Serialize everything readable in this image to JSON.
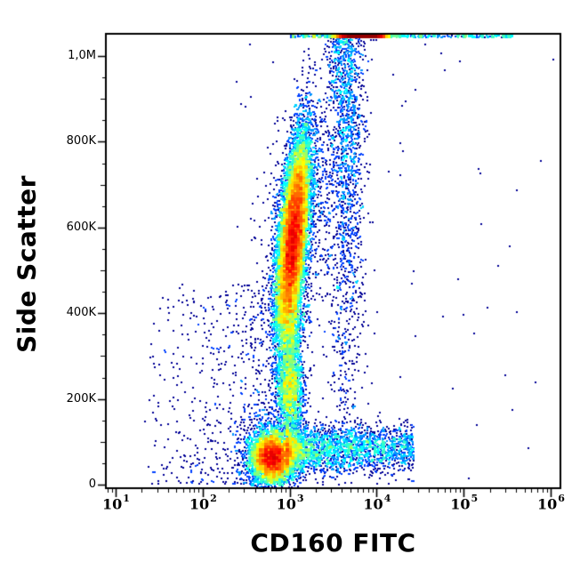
{
  "figure": {
    "background_color": "#ffffff",
    "border_color": "#000000"
  },
  "chart_data": {
    "type": "scatter",
    "subtype": "flow-cytometry-pseudocolor-density",
    "title": "",
    "xlabel": "CD160 FITC",
    "ylabel": "Side Scatter",
    "x_scale": "log10",
    "x_range_log10": [
      0.89,
      6.1
    ],
    "y_range": [
      -8000,
      1052000
    ],
    "grid": "off",
    "legend": "none",
    "colormap": "jet",
    "lowest_density_color": "#00008f",
    "highest_density_color": "#b00000",
    "x_ticks": [
      {
        "log10": 1,
        "base": "10",
        "exp": "1"
      },
      {
        "log10": 2,
        "base": "10",
        "exp": "2"
      },
      {
        "log10": 3,
        "base": "10",
        "exp": "3"
      },
      {
        "log10": 4,
        "base": "10",
        "exp": "4"
      },
      {
        "log10": 5,
        "base": "10",
        "exp": "5"
      },
      {
        "log10": 6,
        "base": "10",
        "exp": "6"
      }
    ],
    "y_ticks": [
      {
        "value": 0,
        "label": "0"
      },
      {
        "value": 200000,
        "label": "200K"
      },
      {
        "value": 400000,
        "label": "400K"
      },
      {
        "value": 600000,
        "label": "600K"
      },
      {
        "value": 800000,
        "label": "800K"
      },
      {
        "value": 1000000,
        "label": "1,0M"
      }
    ],
    "y_minor_step": 50000,
    "populations": [
      {
        "name": "lymphocytes-cd160neg",
        "kind": "gauss2d",
        "n": 5200,
        "cx": 2.79,
        "cy": 66000,
        "sx": 0.115,
        "sy": 27000,
        "tilt": 0
      },
      {
        "name": "lymphocytes-halo",
        "kind": "gauss2d",
        "n": 900,
        "cx": 2.78,
        "cy": 74000,
        "sx": 0.2,
        "sy": 50000,
        "tilt": 0
      },
      {
        "name": "nk-cd160pos-arm",
        "kind": "band",
        "n": 2500,
        "x0": 2.95,
        "x1": 4.42,
        "xpow": 1.45,
        "cy": 86000,
        "sy": 27000
      },
      {
        "name": "monocytes",
        "kind": "gauss2d",
        "n": 1500,
        "cx": 2.995,
        "cy": 218000,
        "sx": 0.075,
        "sy": 52000,
        "tilt": 0
      },
      {
        "name": "neck-bridge",
        "kind": "gauss2d",
        "n": 950,
        "cx": 3.01,
        "cy": 352000,
        "sx": 0.062,
        "sy": 78000,
        "tilt": 0
      },
      {
        "name": "granulocytes",
        "kind": "gauss2d",
        "n": 13500,
        "cx": 3.03,
        "cy": 575000,
        "sx": 0.075,
        "sy": 112000,
        "tilt": 4.5e-07
      },
      {
        "name": "granulocytes-halo",
        "kind": "gauss2d",
        "n": 1300,
        "cx": 3.06,
        "cy": 565000,
        "sx": 0.19,
        "sy": 165000,
        "tilt": 4.5e-07
      },
      {
        "name": "cd160pos-high-ssc-streak",
        "kind": "halftop",
        "n": 1700,
        "cx": 3.64,
        "sx": 0.11,
        "ytop": 1045000,
        "sy": 340000,
        "ymin": 20000,
        "ufrac": 0.22
      },
      {
        "name": "top-edge-pileup",
        "kind": "topline",
        "n": 2100,
        "gx": 3.82,
        "gsx": 0.14,
        "gfrac": 0.82,
        "ux0": 3.0,
        "ux1": 5.55,
        "y0": 1046000,
        "y1": 1058000
      },
      {
        "name": "debris-background",
        "kind": "uniform",
        "n": 720,
        "x0": 1.3,
        "x1": 3.12,
        "xpow": 0.6,
        "y0": 4000,
        "y1": 470000,
        "ypow": 1.3
      },
      {
        "name": "sparse-right-outliers",
        "kind": "uniform",
        "n": 55,
        "x0": 3.2,
        "x1": 6.05,
        "xpow": 1,
        "y0": 15000,
        "y1": 1030000,
        "ypow": 1
      },
      {
        "name": "sparse-left-outliers",
        "kind": "uniform",
        "n": 12,
        "x0": 2.0,
        "x1": 2.95,
        "xpow": 1,
        "y0": 430000,
        "y1": 1035000,
        "ypow": 1
      }
    ]
  }
}
